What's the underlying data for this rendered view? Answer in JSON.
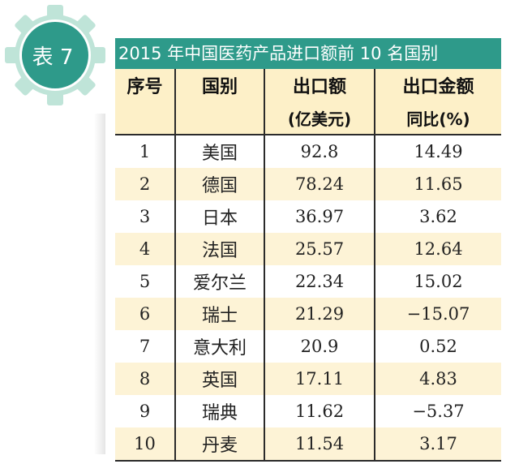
{
  "badge": {
    "label": "表 7"
  },
  "title": "2015 年中国医药产品进口额前 10 名国别",
  "headers": {
    "col1": "序号",
    "col2": "国别",
    "col3_line1": "出口额",
    "col3_line2": "(亿美元)",
    "col4_line1": "出口金额",
    "col4_line2": "同比(%)"
  },
  "rows": [
    {
      "rank": "1",
      "country": "美国",
      "amount": "92.8",
      "yoy": "14.49"
    },
    {
      "rank": "2",
      "country": "德国",
      "amount": "78.24",
      "yoy": "11.65"
    },
    {
      "rank": "3",
      "country": "日本",
      "amount": "36.97",
      "yoy": "3.62"
    },
    {
      "rank": "4",
      "country": "法国",
      "amount": "25.57",
      "yoy": "12.64"
    },
    {
      "rank": "5",
      "country": "爱尔兰",
      "amount": "22.34",
      "yoy": "15.02"
    },
    {
      "rank": "6",
      "country": "瑞士",
      "amount": "21.29",
      "yoy": "−15.07"
    },
    {
      "rank": "7",
      "country": "意大利",
      "amount": "20.9",
      "yoy": "0.52"
    },
    {
      "rank": "8",
      "country": "英国",
      "amount": "17.11",
      "yoy": "4.83"
    },
    {
      "rank": "9",
      "country": "瑞典",
      "amount": "11.62",
      "yoy": "−5.37"
    },
    {
      "rank": "10",
      "country": "丹麦",
      "amount": "11.54",
      "yoy": "3.17"
    }
  ],
  "colors": {
    "accent": "#2e9a8a",
    "gear_outer": "#bfe4d8",
    "header_fill": "#fdf0c8",
    "stripe_fill": "#fdf3d6"
  }
}
